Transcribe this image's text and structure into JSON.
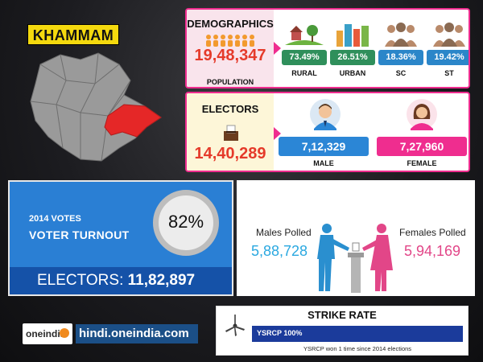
{
  "district": "KHAMMAM",
  "demographics": {
    "title": "DEMOGRAPHICS",
    "population": "19,48,347",
    "population_label": "POPULATION",
    "categories": [
      {
        "value": "73.49%",
        "label": "RURAL",
        "color": "#2f8f5b"
      },
      {
        "value": "26.51%",
        "label": "URBAN",
        "color": "#2f8f5b"
      },
      {
        "value": "18.36%",
        "label": "SC",
        "color": "#2b86c9"
      },
      {
        "value": "19.42%",
        "label": "ST",
        "color": "#2b86c9"
      }
    ]
  },
  "electors": {
    "title": "ELECTORS",
    "total": "14,40,289",
    "male": "7,12,329",
    "male_label": "MALE",
    "female": "7,27,960",
    "female_label": "FEMALE",
    "male_color": "#2b86d6",
    "female_color": "#ef2d8f"
  },
  "turnout": {
    "year_label": "2014 VOTES",
    "title": "VOTER TURNOUT",
    "percent": "82%",
    "electors_label": "ELECTORS:",
    "electors_value": "11,82,897"
  },
  "polled": {
    "males_label": "Males Polled",
    "males_value": "5,88,728",
    "females_label": "Females Polled",
    "females_value": "5,94,169"
  },
  "brand": {
    "logo_text": "oneindia",
    "site": "hindi.oneindia.com"
  },
  "strike_rate": {
    "title": "STRIKE RATE",
    "party": "YSRCP 100%",
    "note": "YSRCP won 1 time since 2014 elections"
  }
}
